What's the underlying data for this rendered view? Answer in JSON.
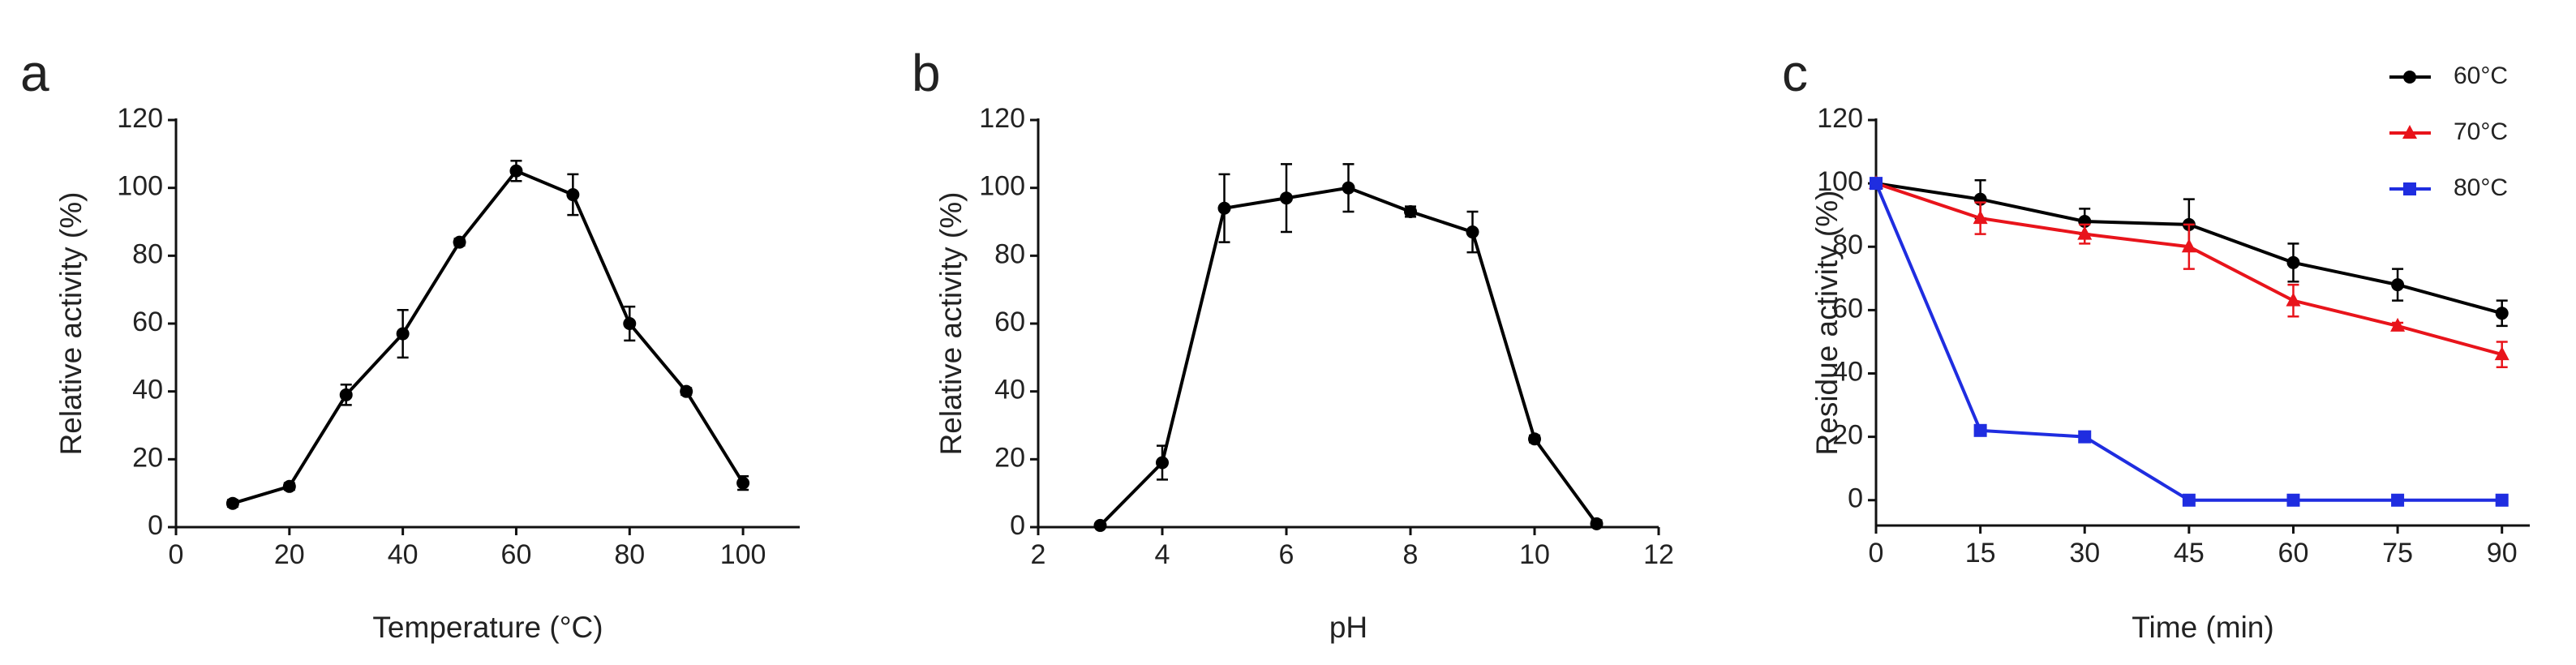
{
  "chart_data": [
    {
      "type": "line",
      "title": "a",
      "xlabel": "Temperature (°C)",
      "ylabel": "Relative activity (%)",
      "x": [
        10,
        20,
        30,
        40,
        50,
        60,
        70,
        80,
        90,
        100
      ],
      "values": [
        7,
        12,
        39,
        57,
        84,
        105,
        98,
        60,
        40,
        13
      ],
      "errors": [
        1,
        1,
        3,
        7,
        1,
        3,
        6,
        5,
        1,
        2
      ],
      "color": "#000000",
      "marker": "circle",
      "xlim": [
        0,
        110
      ],
      "xticks": [
        0,
        20,
        40,
        60,
        80,
        100
      ],
      "ylim": [
        0,
        120
      ],
      "yticks": [
        0,
        20,
        40,
        60,
        80,
        100,
        120
      ]
    },
    {
      "type": "line",
      "title": "b",
      "xlabel": "pH",
      "ylabel": "Relative activity (%)",
      "x": [
        3,
        4,
        5,
        6,
        7,
        8,
        9,
        10,
        11
      ],
      "values": [
        0.5,
        19,
        94,
        97,
        100,
        93,
        87,
        26,
        1
      ],
      "errors": [
        0.5,
        5,
        10,
        10,
        7,
        1.5,
        6,
        1,
        1
      ],
      "color": "#000000",
      "marker": "circle",
      "xlim": [
        2,
        12
      ],
      "xticks": [
        2,
        4,
        6,
        8,
        10,
        12
      ],
      "ylim": [
        0,
        120
      ],
      "yticks": [
        0,
        20,
        40,
        60,
        80,
        100,
        120
      ]
    },
    {
      "type": "line",
      "title": "c",
      "xlabel": "Time (min)",
      "ylabel": "Residue activity (%)",
      "x": [
        0,
        15,
        30,
        45,
        60,
        75,
        90
      ],
      "series": [
        {
          "name": "60°C",
          "color": "#000000",
          "marker": "circle",
          "values": [
            100,
            95,
            88,
            87,
            75,
            68,
            59
          ],
          "errors": [
            0,
            6,
            4,
            8,
            6,
            5,
            4
          ]
        },
        {
          "name": "70°C",
          "color": "#e8141b",
          "marker": "triangle",
          "values": [
            100,
            89,
            84,
            80,
            63,
            55,
            46
          ],
          "errors": [
            0,
            5,
            3,
            7,
            5,
            1,
            4
          ]
        },
        {
          "name": "80°C",
          "color": "#1f2de0",
          "marker": "square",
          "values": [
            100,
            22,
            20,
            0,
            0,
            0,
            0
          ],
          "errors": [
            0,
            0,
            0,
            0,
            0,
            0,
            0
          ]
        }
      ],
      "legend": "upper right",
      "xlim": [
        0,
        94
      ],
      "xticks": [
        0,
        15,
        30,
        45,
        60,
        75,
        90
      ],
      "ylim": [
        -8,
        120
      ],
      "yticks": [
        0,
        20,
        40,
        60,
        80,
        100,
        120
      ]
    }
  ]
}
